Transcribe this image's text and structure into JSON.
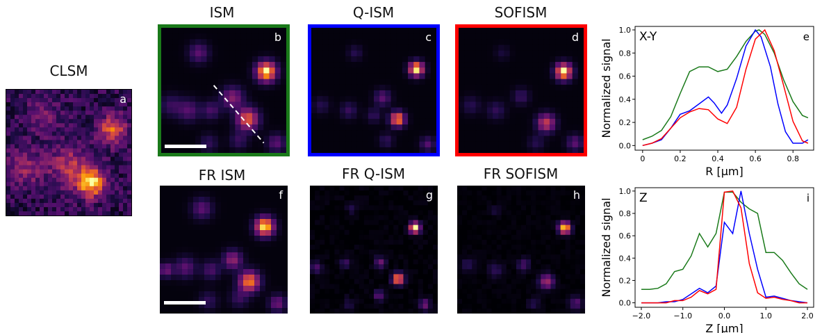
{
  "titles": {
    "clsm": "CLSM",
    "ism": "ISM",
    "qism": "Q-ISM",
    "sofism": "SOFISM",
    "fr_ism": "FR ISM",
    "fr_qism": "FR Q-ISM",
    "fr_sofism": "FR SOFISM"
  },
  "letters": {
    "a": "a",
    "b": "b",
    "c": "c",
    "d": "d",
    "e": "e",
    "f": "f",
    "g": "g",
    "h": "h",
    "i": "i"
  },
  "colors": {
    "ism": "#1a7a1a",
    "qism": "#0000ff",
    "sofism": "#ff0000",
    "colormap": "inferno"
  },
  "chart_data": [
    {
      "type": "line",
      "title": "",
      "corner_label": "X-Y",
      "panel_letter": "e",
      "xlabel": "R [μm]",
      "ylabel": "Normalized signal",
      "xlim": [
        -0.04,
        0.91
      ],
      "ylim": [
        -0.04,
        1.03
      ],
      "xticks": [
        "0",
        "0.2",
        "0.4",
        "0.6",
        "0.8"
      ],
      "xtick_values": [
        0,
        0.2,
        0.4,
        0.6,
        0.8
      ],
      "yticks": [
        "0.0",
        "0.2",
        "0.4",
        "0.6",
        "0.8",
        "1.0"
      ],
      "ytick_values": [
        0,
        0.2,
        0.4,
        0.6,
        0.8,
        1.0
      ],
      "series": [
        {
          "color": "#1a7a1a",
          "x": [
            0,
            0.05,
            0.1,
            0.15,
            0.2,
            0.25,
            0.3,
            0.35,
            0.4,
            0.45,
            0.5,
            0.55,
            0.6,
            0.62,
            0.65,
            0.7,
            0.75,
            0.8,
            0.85,
            0.88
          ],
          "y": [
            0.05,
            0.08,
            0.13,
            0.25,
            0.45,
            0.64,
            0.68,
            0.68,
            0.64,
            0.66,
            0.77,
            0.9,
            0.99,
            1.0,
            0.96,
            0.8,
            0.57,
            0.38,
            0.26,
            0.24
          ]
        },
        {
          "color": "#0000ff",
          "x": [
            0,
            0.05,
            0.1,
            0.15,
            0.2,
            0.25,
            0.3,
            0.35,
            0.38,
            0.42,
            0.45,
            0.5,
            0.55,
            0.6,
            0.63,
            0.68,
            0.72,
            0.76,
            0.8,
            0.85,
            0.88
          ],
          "y": [
            0.0,
            0.02,
            0.05,
            0.15,
            0.27,
            0.3,
            0.36,
            0.42,
            0.37,
            0.28,
            0.35,
            0.58,
            0.86,
            1.0,
            0.94,
            0.68,
            0.36,
            0.12,
            0.02,
            0.02,
            0.05
          ]
        },
        {
          "color": "#ff0000",
          "x": [
            0,
            0.05,
            0.1,
            0.15,
            0.2,
            0.25,
            0.3,
            0.35,
            0.4,
            0.45,
            0.5,
            0.55,
            0.6,
            0.65,
            0.7,
            0.75,
            0.8,
            0.85,
            0.88
          ],
          "y": [
            0.0,
            0.02,
            0.06,
            0.15,
            0.24,
            0.29,
            0.32,
            0.31,
            0.23,
            0.19,
            0.33,
            0.66,
            0.92,
            1.0,
            0.82,
            0.52,
            0.21,
            0.04,
            0.02
          ]
        }
      ]
    },
    {
      "type": "line",
      "title": "",
      "corner_label": "Z",
      "panel_letter": "i",
      "xlabel": "Z [μm]",
      "ylabel": "Normalized signal",
      "xlim": [
        -2.15,
        2.15
      ],
      "ylim": [
        -0.04,
        1.03
      ],
      "xticks": [
        "−2.0",
        "−1.0",
        "0.0",
        "1.0",
        "2.0"
      ],
      "xtick_values": [
        -2,
        -1,
        0,
        1,
        2
      ],
      "yticks": [
        "0.0",
        "0.2",
        "0.4",
        "0.6",
        "0.8",
        "1.0"
      ],
      "ytick_values": [
        0,
        0.2,
        0.4,
        0.6,
        0.8,
        1.0
      ],
      "series": [
        {
          "color": "#1a7a1a",
          "x": [
            -2.0,
            -1.8,
            -1.6,
            -1.4,
            -1.2,
            -1.0,
            -0.8,
            -0.6,
            -0.4,
            -0.2,
            0.0,
            0.2,
            0.4,
            0.6,
            0.8,
            1.0,
            1.2,
            1.4,
            1.6,
            1.8,
            2.0
          ],
          "y": [
            0.12,
            0.12,
            0.13,
            0.17,
            0.28,
            0.3,
            0.42,
            0.62,
            0.5,
            0.62,
            0.99,
            0.99,
            0.9,
            0.84,
            0.8,
            0.45,
            0.45,
            0.38,
            0.27,
            0.17,
            0.12
          ]
        },
        {
          "color": "#0000ff",
          "x": [
            -2.0,
            -1.8,
            -1.6,
            -1.4,
            -1.2,
            -1.0,
            -0.8,
            -0.6,
            -0.4,
            -0.2,
            0.0,
            0.2,
            0.4,
            0.6,
            0.8,
            1.0,
            1.2,
            1.4,
            1.6,
            1.8,
            2.0
          ],
          "y": [
            0.0,
            0.0,
            0.0,
            0.01,
            0.01,
            0.03,
            0.08,
            0.13,
            0.09,
            0.15,
            0.72,
            0.62,
            1.0,
            0.62,
            0.3,
            0.05,
            0.06,
            0.04,
            0.02,
            0.01,
            0.0
          ]
        },
        {
          "color": "#ff0000",
          "x": [
            -2.0,
            -1.8,
            -1.6,
            -1.4,
            -1.2,
            -1.0,
            -0.8,
            -0.6,
            -0.4,
            -0.2,
            0.0,
            0.2,
            0.4,
            0.6,
            0.8,
            1.0,
            1.2,
            1.4,
            1.6,
            1.8,
            2.0
          ],
          "y": [
            0.0,
            0.0,
            0.0,
            0.0,
            0.02,
            0.02,
            0.05,
            0.11,
            0.08,
            0.12,
            0.99,
            1.0,
            0.85,
            0.35,
            0.09,
            0.04,
            0.05,
            0.03,
            0.02,
            0.0,
            0.0
          ]
        }
      ]
    }
  ]
}
